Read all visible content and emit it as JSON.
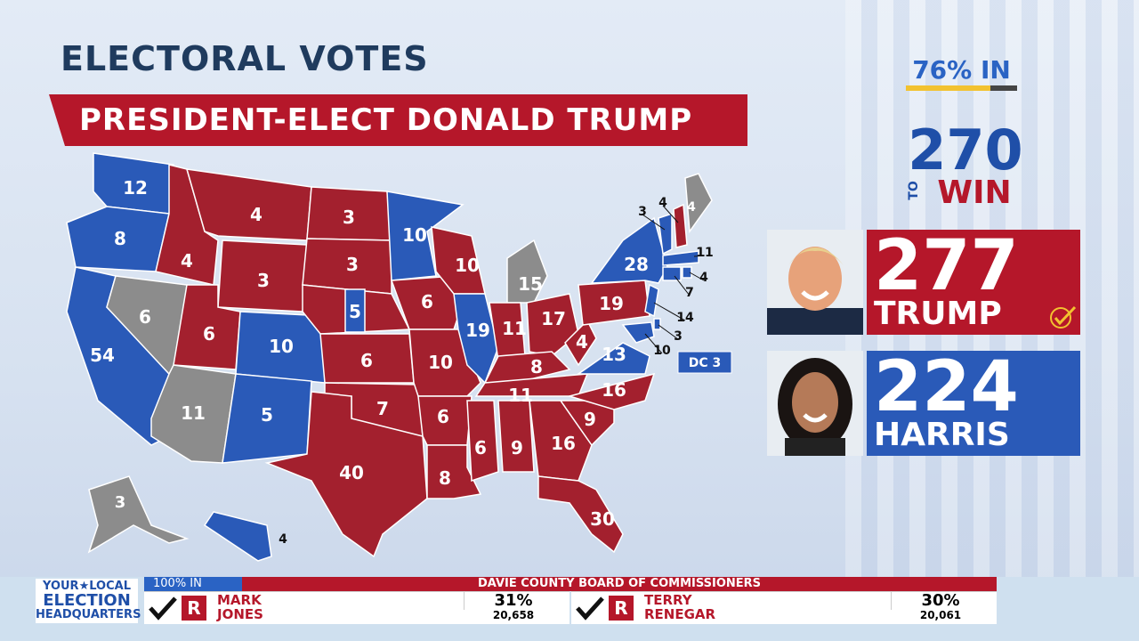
{
  "header": {
    "title": "ELECTORAL VOTES",
    "banner": "PRESIDENT-ELECT DONALD TRUMP",
    "percent_in": "76% IN",
    "to_win_number": "270",
    "to_win_to": "TO",
    "to_win_win": "WIN"
  },
  "candidates": [
    {
      "votes": 277,
      "name": "TRUMP",
      "color": "#b5172a"
    },
    {
      "votes": 224,
      "name": "HARRIS",
      "color": "#2a5ab8"
    }
  ],
  "map": {
    "states": [
      {
        "votes": 12,
        "color": "#2a5ab8"
      },
      {
        "votes": 8,
        "color": "#2a5ab8"
      },
      {
        "votes": 54,
        "color": "#2a5ab8"
      },
      {
        "votes": 6,
        "color": "#8c8c8c"
      },
      {
        "votes": 4,
        "color": "#a3202e"
      },
      {
        "votes": 4,
        "color": "#a3202e"
      },
      {
        "votes": 3,
        "color": "#a3202e"
      },
      {
        "votes": 6,
        "color": "#a3202e"
      },
      {
        "votes": 10,
        "color": "#2a5ab8"
      },
      {
        "votes": 11,
        "color": "#8c8c8c"
      },
      {
        "votes": 5,
        "color": "#2a5ab8"
      },
      {
        "votes": 3,
        "color": "#a3202e"
      },
      {
        "votes": 3,
        "color": "#a3202e"
      },
      {
        "votes": 5,
        "color": "#2a5ab8"
      },
      {
        "votes": 6,
        "color": "#a3202e"
      },
      {
        "votes": 7,
        "color": "#a3202e"
      },
      {
        "votes": 40,
        "color": "#a3202e"
      },
      {
        "votes": 10,
        "color": "#2a5ab8"
      },
      {
        "votes": 6,
        "color": "#a3202e"
      },
      {
        "votes": 10,
        "color": "#a3202e"
      },
      {
        "votes": 6,
        "color": "#a3202e"
      },
      {
        "votes": 8,
        "color": "#a3202e"
      },
      {
        "votes": 10,
        "color": "#a3202e"
      },
      {
        "votes": 19,
        "color": "#2a5ab8"
      },
      {
        "votes": 15,
        "color": "#8c8c8c"
      },
      {
        "votes": 11,
        "color": "#a3202e"
      },
      {
        "votes": 17,
        "color": "#a3202e"
      },
      {
        "votes": 8,
        "color": "#a3202e"
      },
      {
        "votes": 11,
        "color": "#a3202e"
      },
      {
        "votes": 6,
        "color": "#a3202e"
      },
      {
        "votes": 9,
        "color": "#a3202e"
      },
      {
        "votes": 16,
        "color": "#a3202e"
      },
      {
        "votes": 30,
        "color": "#a3202e"
      },
      {
        "votes": 9,
        "color": "#a3202e"
      },
      {
        "votes": 16,
        "color": "#a3202e"
      },
      {
        "votes": 13,
        "color": "#2a5ab8"
      },
      {
        "votes": 4,
        "color": "#a3202e"
      },
      {
        "votes": 19,
        "color": "#a3202e"
      },
      {
        "votes": 28,
        "color": "#2a5ab8"
      },
      {
        "votes": 3,
        "color": "#8c8c8c"
      },
      {
        "votes": 4,
        "color": "#2a5ab8"
      },
      {
        "votes": 3,
        "color": "#2a5ab8"
      },
      {
        "votes": 4,
        "color": "#a3202e"
      },
      {
        "votes": 4,
        "color": "#8c8c8c"
      },
      {
        "votes": 11,
        "color": "#2a5ab8"
      },
      {
        "votes": 4,
        "color": "#2a5ab8"
      },
      {
        "votes": 7,
        "color": "#2a5ab8"
      },
      {
        "votes": 14,
        "color": "#2a5ab8"
      },
      {
        "votes": 3,
        "color": "#2a5ab8"
      },
      {
        "votes": 10,
        "color": "#2a5ab8"
      }
    ],
    "dc": "DC 3"
  },
  "ticker": {
    "logo_line1": "YOUR★LOCAL",
    "logo_line2": "ELECTION",
    "logo_line3": "HEADQUARTERS",
    "reporting": "100% IN",
    "race": "DAVIE COUNTY BOARD OF COMMISSIONERS",
    "candidates": [
      {
        "party": "R",
        "first": "MARK",
        "last": "JONES",
        "percent": "31%",
        "votes": "20,658"
      },
      {
        "party": "R",
        "first": "TERRY",
        "last": "RENEGAR",
        "percent": "30%",
        "votes": "20,061"
      }
    ]
  }
}
